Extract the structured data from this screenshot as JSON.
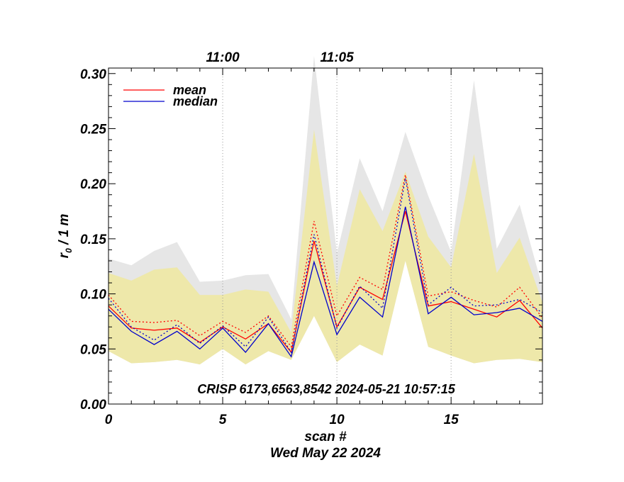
{
  "chart_data": {
    "type": "line",
    "annotation": "CRISP 6173,6563,8542 2024-05-21 10:57:15",
    "xlabel": "scan #",
    "date_label": "Wed May 22 2024",
    "ylabel_main": "r",
    "ylabel_sub": "0",
    "ylabel_rest": " / 1 m",
    "xlim": [
      0,
      19
    ],
    "ylim": [
      0.0,
      0.305
    ],
    "x_ticks": [
      0,
      5,
      10,
      15
    ],
    "x_tick_labels": [
      "0",
      "5",
      "10",
      "15"
    ],
    "y_ticks": [
      0.0,
      0.05,
      0.1,
      0.15,
      0.2,
      0.25,
      0.3
    ],
    "y_tick_labels": [
      "0.00",
      "0.05",
      "0.10",
      "0.15",
      "0.20",
      "0.25",
      "0.30"
    ],
    "time_ticks": [
      {
        "x": 5,
        "label": "11:00"
      },
      {
        "x": 10,
        "label": "11:05"
      },
      {
        "x": 15,
        "label": ""
      }
    ],
    "legend_position": "top-left",
    "x": [
      0,
      1,
      2,
      3,
      4,
      5,
      6,
      7,
      8,
      9,
      10,
      11,
      12,
      13,
      14,
      15,
      16,
      17,
      18,
      19
    ],
    "outer_band": {
      "color": "#e6e6e6",
      "low": [
        0.048,
        0.037,
        0.038,
        0.04,
        0.036,
        0.05,
        0.036,
        0.048,
        0.04,
        0.08,
        0.038,
        0.054,
        0.044,
        0.13,
        0.052,
        0.044,
        0.037,
        0.04,
        0.041,
        0.038
      ],
      "high": [
        0.132,
        0.126,
        0.139,
        0.147,
        0.111,
        0.112,
        0.117,
        0.118,
        0.077,
        0.316,
        0.137,
        0.223,
        0.175,
        0.247,
        0.189,
        0.138,
        0.294,
        0.141,
        0.181,
        0.106
      ]
    },
    "inner_band": {
      "color": "#eee8aa",
      "low": [
        0.048,
        0.037,
        0.038,
        0.04,
        0.036,
        0.05,
        0.036,
        0.048,
        0.04,
        0.08,
        0.038,
        0.054,
        0.044,
        0.13,
        0.052,
        0.044,
        0.037,
        0.04,
        0.041,
        0.038
      ],
      "high": [
        0.119,
        0.112,
        0.122,
        0.124,
        0.099,
        0.099,
        0.104,
        0.102,
        0.065,
        0.249,
        0.107,
        0.195,
        0.157,
        0.211,
        0.152,
        0.124,
        0.227,
        0.119,
        0.151,
        0.092
      ]
    },
    "series": [
      {
        "name": "mean",
        "color": "#ff0000",
        "style": "solid",
        "values": [
          0.089,
          0.069,
          0.067,
          0.069,
          0.056,
          0.07,
          0.059,
          0.073,
          0.047,
          0.148,
          0.07,
          0.106,
          0.095,
          0.175,
          0.089,
          0.093,
          0.086,
          0.079,
          0.094,
          0.069
        ]
      },
      {
        "name": "median",
        "color": "#0000cc",
        "style": "solid",
        "values": [
          0.086,
          0.066,
          0.054,
          0.066,
          0.05,
          0.069,
          0.047,
          0.073,
          0.043,
          0.129,
          0.063,
          0.097,
          0.079,
          0.179,
          0.082,
          0.097,
          0.081,
          0.083,
          0.087,
          0.075
        ]
      },
      {
        "color": "#ff0000",
        "style": "dotted",
        "values": [
          0.099,
          0.075,
          0.074,
          0.076,
          0.062,
          0.075,
          0.065,
          0.08,
          0.052,
          0.166,
          0.08,
          0.115,
          0.104,
          0.208,
          0.098,
          0.102,
          0.094,
          0.088,
          0.106,
          0.078
        ]
      },
      {
        "color": "#0000cc",
        "style": "dotted",
        "values": [
          0.096,
          0.07,
          0.058,
          0.072,
          0.055,
          0.071,
          0.052,
          0.079,
          0.047,
          0.154,
          0.069,
          0.107,
          0.087,
          0.205,
          0.09,
          0.106,
          0.089,
          0.09,
          0.095,
          0.083
        ]
      }
    ]
  }
}
